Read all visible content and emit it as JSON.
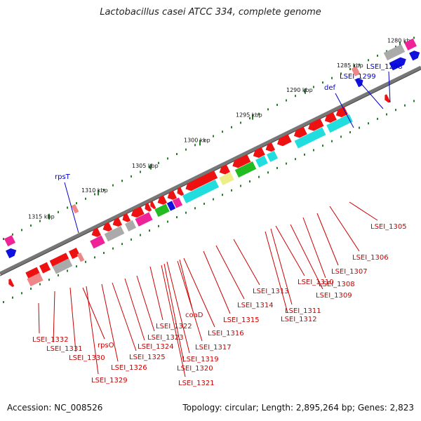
{
  "title": "Lactobacillus casei ATCC 334, complete genome",
  "footer": {
    "accession": "Accession: NC_008526",
    "summary": "Topology: circular; Length: 2,895,264 bp; Genes: 2,823"
  },
  "colors": {
    "backbone": "#777777",
    "tick_dot": "#2a7d2a",
    "forward_gene_label": "#0000cc",
    "reverse_gene_label": "#cc0000",
    "gene_red": "#ee1111",
    "gene_cyan": "#22dddd",
    "gene_magenta": "#ee2299",
    "gene_green": "#22bb22",
    "gene_gray": "#aaaaaa",
    "gene_yellow": "#eeee88",
    "gene_blue": "#1111dd",
    "gene_pink": "#ee8888"
  },
  "kbp_labels": [
    {
      "text": "1315 kbp"
    },
    {
      "text": "1310 kbp"
    },
    {
      "text": "1305 kbp"
    },
    {
      "text": "1300 kbp"
    },
    {
      "text": "1295 kbp"
    },
    {
      "text": "1290 kbp"
    },
    {
      "text": "1285 kbp"
    },
    {
      "text": "1280 kbp"
    }
  ],
  "forward_labels": [
    {
      "text": "rpsT"
    },
    {
      "text": "def"
    },
    {
      "text": "LSEI_1299"
    },
    {
      "text": "LSEI_1298"
    }
  ],
  "reverse_labels": [
    {
      "text": "LSEI_1332"
    },
    {
      "text": "LSEI_1331"
    },
    {
      "text": "LSEI_1330"
    },
    {
      "text": "rpsO"
    },
    {
      "text": "LSEI_1329"
    },
    {
      "text": "LSEI_1326"
    },
    {
      "text": "LSEI_1325"
    },
    {
      "text": "LSEI_1324"
    },
    {
      "text": "LSEI_1323"
    },
    {
      "text": "LSEI_1322"
    },
    {
      "text": "LSEI_1321"
    },
    {
      "text": "LSEI_1320"
    },
    {
      "text": "LSEI_1319"
    },
    {
      "text": "LSEI_1317"
    },
    {
      "text": "coaD"
    },
    {
      "text": "LSEI_1316"
    },
    {
      "text": "LSEI_1315"
    },
    {
      "text": "LSEI_1314"
    },
    {
      "text": "LSEI_1313"
    },
    {
      "text": "LSEI_1312"
    },
    {
      "text": "LSEI_1311"
    },
    {
      "text": "LSEI_1310"
    },
    {
      "text": "LSEI_1309"
    },
    {
      "text": "LSEI_1308"
    },
    {
      "text": "LSEI_1307"
    },
    {
      "text": "LSEI_1306"
    },
    {
      "text": "LSEI_1305"
    }
  ]
}
